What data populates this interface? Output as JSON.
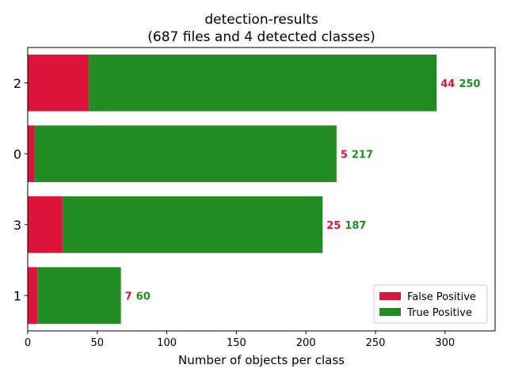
{
  "chart_data": {
    "type": "bar",
    "orientation": "horizontal",
    "stacked": true,
    "title": "detection-results",
    "subtitle": "(687 files and 4 detected classes)",
    "xlabel": "Number of objects per class",
    "ylabel": "",
    "xlim": [
      0,
      336
    ],
    "xticks": [
      0,
      50,
      100,
      150,
      200,
      250,
      300
    ],
    "categories": [
      "2",
      "0",
      "3",
      "1"
    ],
    "series": [
      {
        "name": "False Positive",
        "color": "#dc143c",
        "values": [
          44,
          5,
          25,
          7
        ]
      },
      {
        "name": "True Positive",
        "color": "#228b22",
        "values": [
          250,
          217,
          187,
          60
        ]
      }
    ],
    "legend_position": "lower-right",
    "grid": false
  }
}
